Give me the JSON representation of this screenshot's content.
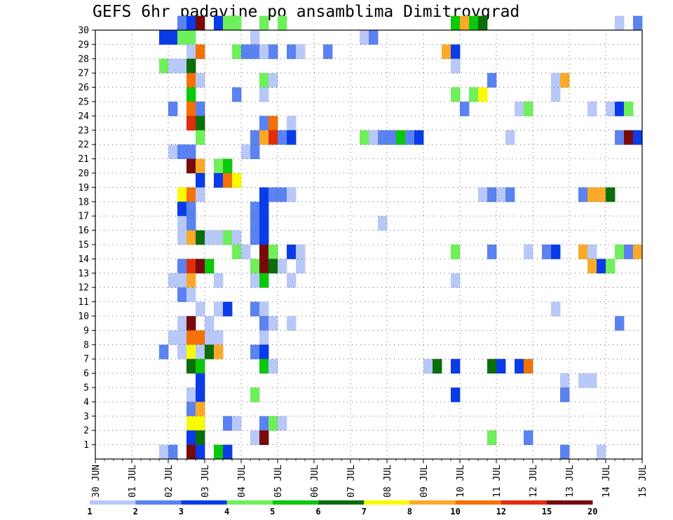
{
  "chart_data": {
    "type": "heatmap",
    "title": "GEFS 6hr padavine po ansamblima Dimitrovgrad",
    "xlabel": "",
    "ylabel": "",
    "x_ticks": [
      "30 JUN",
      "01 JUL",
      "02 JUL",
      "03 JUL",
      "04 JUL",
      "05 JUL",
      "06 JUL",
      "07 JUL",
      "08 JUL",
      "09 JUL",
      "10 JUL",
      "11 JUL",
      "12 JUL",
      "13 JUL",
      "14 JUL",
      "15 JUL"
    ],
    "y_ticks": [
      "1",
      "2",
      "3",
      "4",
      "5",
      "6",
      "7",
      "8",
      "9",
      "10",
      "11",
      "12",
      "13",
      "14",
      "15",
      "16",
      "17",
      "18",
      "19",
      "20",
      "21",
      "22",
      "23",
      "24",
      "25",
      "26",
      "27",
      "28",
      "29",
      "30"
    ],
    "y_range": [
      0,
      30
    ],
    "x_range": [
      0,
      60
    ],
    "grid": true,
    "colorbar": {
      "labels": [
        "1",
        "2",
        "3",
        "4",
        "5",
        "6",
        "7",
        "8",
        "10",
        "12",
        "15",
        "20"
      ],
      "colors": [
        "#b8c8f8",
        "#5a82f0",
        "#0a3be8",
        "#6ef05a",
        "#0ac80a",
        "#0a6e0a",
        "#fafa00",
        "#faaa28",
        "#f57005",
        "#e12d0a",
        "#780a0a"
      ]
    },
    "cells": [
      {
        "m": 30,
        "t": 9,
        "c": 1
      },
      {
        "m": 30,
        "t": 10,
        "c": 2
      },
      {
        "m": 30,
        "t": 11,
        "c": 10
      },
      {
        "m": 30,
        "t": 13,
        "c": 2
      },
      {
        "m": 30,
        "t": 14,
        "c": 3
      },
      {
        "m": 30,
        "t": 15,
        "c": 3
      },
      {
        "m": 30,
        "t": 18,
        "c": 3
      },
      {
        "m": 30,
        "t": 20,
        "c": 3
      },
      {
        "m": 30,
        "t": 39,
        "c": 4
      },
      {
        "m": 30,
        "t": 40,
        "c": 7
      },
      {
        "m": 30,
        "t": 41,
        "c": 4
      },
      {
        "m": 30,
        "t": 42,
        "c": 5
      },
      {
        "m": 30,
        "t": 57,
        "c": 0
      },
      {
        "m": 30,
        "t": 59,
        "c": 1
      },
      {
        "m": 29,
        "t": 7,
        "c": 2
      },
      {
        "m": 29,
        "t": 8,
        "c": 2
      },
      {
        "m": 29,
        "t": 9,
        "c": 3
      },
      {
        "m": 29,
        "t": 10,
        "c": 3
      },
      {
        "m": 29,
        "t": 17,
        "c": 0
      },
      {
        "m": 29,
        "t": 29,
        "c": 0
      },
      {
        "m": 29,
        "t": 30,
        "c": 1
      },
      {
        "m": 28,
        "t": 10,
        "c": 0
      },
      {
        "m": 28,
        "t": 11,
        "c": 8
      },
      {
        "m": 28,
        "t": 15,
        "c": 3
      },
      {
        "m": 28,
        "t": 16,
        "c": 1
      },
      {
        "m": 28,
        "t": 17,
        "c": 1
      },
      {
        "m": 28,
        "t": 18,
        "c": 0
      },
      {
        "m": 28,
        "t": 19,
        "c": 1
      },
      {
        "m": 28,
        "t": 21,
        "c": 1
      },
      {
        "m": 28,
        "t": 22,
        "c": 0
      },
      {
        "m": 28,
        "t": 25,
        "c": 1
      },
      {
        "m": 28,
        "t": 38,
        "c": 7
      },
      {
        "m": 28,
        "t": 39,
        "c": 2
      },
      {
        "m": 27,
        "t": 7,
        "c": 3
      },
      {
        "m": 27,
        "t": 8,
        "c": 0
      },
      {
        "m": 27,
        "t": 9,
        "c": 0
      },
      {
        "m": 27,
        "t": 10,
        "c": 5
      },
      {
        "m": 27,
        "t": 39,
        "c": 0
      },
      {
        "m": 26,
        "t": 10,
        "c": 8
      },
      {
        "m": 26,
        "t": 11,
        "c": 0
      },
      {
        "m": 26,
        "t": 18,
        "c": 3
      },
      {
        "m": 26,
        "t": 19,
        "c": 0
      },
      {
        "m": 26,
        "t": 43,
        "c": 1
      },
      {
        "m": 26,
        "t": 50,
        "c": 0
      },
      {
        "m": 26,
        "t": 51,
        "c": 7
      },
      {
        "m": 25,
        "t": 10,
        "c": 4
      },
      {
        "m": 25,
        "t": 15,
        "c": 1
      },
      {
        "m": 25,
        "t": 18,
        "c": 0
      },
      {
        "m": 25,
        "t": 39,
        "c": 3
      },
      {
        "m": 25,
        "t": 41,
        "c": 3
      },
      {
        "m": 25,
        "t": 42,
        "c": 6
      },
      {
        "m": 25,
        "t": 50,
        "c": 0
      },
      {
        "m": 24,
        "t": 8,
        "c": 1
      },
      {
        "m": 24,
        "t": 10,
        "c": 8
      },
      {
        "m": 24,
        "t": 11,
        "c": 1
      },
      {
        "m": 24,
        "t": 40,
        "c": 1
      },
      {
        "m": 24,
        "t": 46,
        "c": 0
      },
      {
        "m": 24,
        "t": 47,
        "c": 3
      },
      {
        "m": 24,
        "t": 54,
        "c": 0
      },
      {
        "m": 24,
        "t": 56,
        "c": 0
      },
      {
        "m": 24,
        "t": 57,
        "c": 2
      },
      {
        "m": 24,
        "t": 58,
        "c": 3
      },
      {
        "m": 23,
        "t": 10,
        "c": 9
      },
      {
        "m": 23,
        "t": 11,
        "c": 5
      },
      {
        "m": 23,
        "t": 18,
        "c": 1
      },
      {
        "m": 23,
        "t": 19,
        "c": 8
      },
      {
        "m": 23,
        "t": 21,
        "c": 0
      },
      {
        "m": 22,
        "t": 11,
        "c": 3
      },
      {
        "m": 22,
        "t": 17,
        "c": 1
      },
      {
        "m": 22,
        "t": 18,
        "c": 7
      },
      {
        "m": 22,
        "t": 19,
        "c": 9
      },
      {
        "m": 22,
        "t": 20,
        "c": 1
      },
      {
        "m": 22,
        "t": 21,
        "c": 2
      },
      {
        "m": 22,
        "t": 29,
        "c": 3
      },
      {
        "m": 22,
        "t": 30,
        "c": 0
      },
      {
        "m": 22,
        "t": 31,
        "c": 1
      },
      {
        "m": 22,
        "t": 32,
        "c": 1
      },
      {
        "m": 22,
        "t": 33,
        "c": 4
      },
      {
        "m": 22,
        "t": 34,
        "c": 1
      },
      {
        "m": 22,
        "t": 35,
        "c": 2
      },
      {
        "m": 22,
        "t": 45,
        "c": 0
      },
      {
        "m": 22,
        "t": 57,
        "c": 1
      },
      {
        "m": 22,
        "t": 58,
        "c": 10
      },
      {
        "m": 22,
        "t": 59,
        "c": 2
      },
      {
        "m": 21,
        "t": 8,
        "c": 0
      },
      {
        "m": 21,
        "t": 9,
        "c": 1
      },
      {
        "m": 21,
        "t": 10,
        "c": 1
      },
      {
        "m": 21,
        "t": 16,
        "c": 0
      },
      {
        "m": 21,
        "t": 17,
        "c": 1
      },
      {
        "m": 20,
        "t": 10,
        "c": 10
      },
      {
        "m": 20,
        "t": 11,
        "c": 7
      },
      {
        "m": 20,
        "t": 13,
        "c": 3
      },
      {
        "m": 20,
        "t": 14,
        "c": 4
      },
      {
        "m": 19,
        "t": 11,
        "c": 2
      },
      {
        "m": 19,
        "t": 13,
        "c": 2
      },
      {
        "m": 19,
        "t": 14,
        "c": 8
      },
      {
        "m": 19,
        "t": 15,
        "c": 6
      },
      {
        "m": 18,
        "t": 9,
        "c": 6
      },
      {
        "m": 18,
        "t": 10,
        "c": 8
      },
      {
        "m": 18,
        "t": 11,
        "c": 0
      },
      {
        "m": 18,
        "t": 18,
        "c": 2
      },
      {
        "m": 18,
        "t": 19,
        "c": 1
      },
      {
        "m": 18,
        "t": 20,
        "c": 1
      },
      {
        "m": 18,
        "t": 21,
        "c": 0
      },
      {
        "m": 18,
        "t": 42,
        "c": 0
      },
      {
        "m": 18,
        "t": 43,
        "c": 1
      },
      {
        "m": 18,
        "t": 44,
        "c": 0
      },
      {
        "m": 18,
        "t": 45,
        "c": 1
      },
      {
        "m": 18,
        "t": 53,
        "c": 1
      },
      {
        "m": 18,
        "t": 54,
        "c": 7
      },
      {
        "m": 18,
        "t": 55,
        "c": 7
      },
      {
        "m": 18,
        "t": 56,
        "c": 5
      },
      {
        "m": 17,
        "t": 9,
        "c": 2
      },
      {
        "m": 17,
        "t": 10,
        "c": 1
      },
      {
        "m": 17,
        "t": 17,
        "c": 1
      },
      {
        "m": 17,
        "t": 18,
        "c": 2
      },
      {
        "m": 16,
        "t": 9,
        "c": 0
      },
      {
        "m": 16,
        "t": 10,
        "c": 1
      },
      {
        "m": 16,
        "t": 17,
        "c": 1
      },
      {
        "m": 16,
        "t": 18,
        "c": 2
      },
      {
        "m": 16,
        "t": 31,
        "c": 0
      },
      {
        "m": 15,
        "t": 9,
        "c": 0
      },
      {
        "m": 15,
        "t": 10,
        "c": 7
      },
      {
        "m": 15,
        "t": 11,
        "c": 5
      },
      {
        "m": 15,
        "t": 12,
        "c": 0
      },
      {
        "m": 15,
        "t": 13,
        "c": 0
      },
      {
        "m": 15,
        "t": 14,
        "c": 3
      },
      {
        "m": 15,
        "t": 15,
        "c": 0
      },
      {
        "m": 15,
        "t": 17,
        "c": 1
      },
      {
        "m": 15,
        "t": 18,
        "c": 2
      },
      {
        "m": 14,
        "t": 15,
        "c": 3
      },
      {
        "m": 14,
        "t": 16,
        "c": 0
      },
      {
        "m": 14,
        "t": 18,
        "c": 10
      },
      {
        "m": 14,
        "t": 19,
        "c": 3
      },
      {
        "m": 14,
        "t": 21,
        "c": 2
      },
      {
        "m": 14,
        "t": 22,
        "c": 0
      },
      {
        "m": 14,
        "t": 39,
        "c": 3
      },
      {
        "m": 14,
        "t": 43,
        "c": 1
      },
      {
        "m": 14,
        "t": 47,
        "c": 0
      },
      {
        "m": 14,
        "t": 49,
        "c": 1
      },
      {
        "m": 14,
        "t": 50,
        "c": 2
      },
      {
        "m": 14,
        "t": 53,
        "c": 7
      },
      {
        "m": 14,
        "t": 54,
        "c": 0
      },
      {
        "m": 14,
        "t": 57,
        "c": 3
      },
      {
        "m": 14,
        "t": 58,
        "c": 1
      },
      {
        "m": 14,
        "t": 59,
        "c": 7
      },
      {
        "m": 13,
        "t": 9,
        "c": 1
      },
      {
        "m": 13,
        "t": 10,
        "c": 9
      },
      {
        "m": 13,
        "t": 11,
        "c": 10
      },
      {
        "m": 13,
        "t": 12,
        "c": 4
      },
      {
        "m": 13,
        "t": 17,
        "c": 3
      },
      {
        "m": 13,
        "t": 18,
        "c": 10
      },
      {
        "m": 13,
        "t": 19,
        "c": 5
      },
      {
        "m": 13,
        "t": 20,
        "c": 0
      },
      {
        "m": 13,
        "t": 22,
        "c": 0
      },
      {
        "m": 13,
        "t": 54,
        "c": 7
      },
      {
        "m": 13,
        "t": 55,
        "c": 2
      },
      {
        "m": 13,
        "t": 56,
        "c": 3
      },
      {
        "m": 12,
        "t": 8,
        "c": 0
      },
      {
        "m": 12,
        "t": 9,
        "c": 0
      },
      {
        "m": 12,
        "t": 10,
        "c": 7
      },
      {
        "m": 12,
        "t": 13,
        "c": 0
      },
      {
        "m": 12,
        "t": 17,
        "c": 0
      },
      {
        "m": 12,
        "t": 18,
        "c": 4
      },
      {
        "m": 12,
        "t": 21,
        "c": 0
      },
      {
        "m": 12,
        "t": 39,
        "c": 0
      },
      {
        "m": 11,
        "t": 9,
        "c": 1
      },
      {
        "m": 11,
        "t": 10,
        "c": 0
      },
      {
        "m": 10,
        "t": 11,
        "c": 0
      },
      {
        "m": 10,
        "t": 13,
        "c": 0
      },
      {
        "m": 10,
        "t": 14,
        "c": 2
      },
      {
        "m": 10,
        "t": 17,
        "c": 1
      },
      {
        "m": 10,
        "t": 18,
        "c": 0
      },
      {
        "m": 10,
        "t": 50,
        "c": 0
      },
      {
        "m": 9,
        "t": 9,
        "c": 0
      },
      {
        "m": 9,
        "t": 10,
        "c": 10
      },
      {
        "m": 9,
        "t": 12,
        "c": 0
      },
      {
        "m": 9,
        "t": 18,
        "c": 1
      },
      {
        "m": 9,
        "t": 19,
        "c": 0
      },
      {
        "m": 9,
        "t": 21,
        "c": 0
      },
      {
        "m": 9,
        "t": 57,
        "c": 1
      },
      {
        "m": 8,
        "t": 8,
        "c": 0
      },
      {
        "m": 8,
        "t": 9,
        "c": 0
      },
      {
        "m": 8,
        "t": 10,
        "c": 8
      },
      {
        "m": 8,
        "t": 11,
        "c": 8
      },
      {
        "m": 8,
        "t": 12,
        "c": 0
      },
      {
        "m": 8,
        "t": 13,
        "c": 0
      },
      {
        "m": 8,
        "t": 18,
        "c": 0
      },
      {
        "m": 7,
        "t": 7,
        "c": 1
      },
      {
        "m": 7,
        "t": 9,
        "c": 0
      },
      {
        "m": 7,
        "t": 10,
        "c": 6
      },
      {
        "m": 7,
        "t": 11,
        "c": 0
      },
      {
        "m": 7,
        "t": 12,
        "c": 5
      },
      {
        "m": 7,
        "t": 13,
        "c": 7
      },
      {
        "m": 7,
        "t": 17,
        "c": 1
      },
      {
        "m": 7,
        "t": 18,
        "c": 2
      },
      {
        "m": 6,
        "t": 10,
        "c": 5
      },
      {
        "m": 6,
        "t": 11,
        "c": 4
      },
      {
        "m": 6,
        "t": 18,
        "c": 4
      },
      {
        "m": 6,
        "t": 19,
        "c": 0
      },
      {
        "m": 6,
        "t": 36,
        "c": 0
      },
      {
        "m": 6,
        "t": 37,
        "c": 5
      },
      {
        "m": 6,
        "t": 39,
        "c": 2
      },
      {
        "m": 6,
        "t": 43,
        "c": 5
      },
      {
        "m": 6,
        "t": 44,
        "c": 2
      },
      {
        "m": 6,
        "t": 46,
        "c": 2
      },
      {
        "m": 6,
        "t": 47,
        "c": 8
      },
      {
        "m": 5,
        "t": 11,
        "c": 2
      },
      {
        "m": 5,
        "t": 51,
        "c": 0
      },
      {
        "m": 5,
        "t": 53,
        "c": 0
      },
      {
        "m": 5,
        "t": 54,
        "c": 0
      },
      {
        "m": 4,
        "t": 10,
        "c": 0
      },
      {
        "m": 4,
        "t": 11,
        "c": 2
      },
      {
        "m": 4,
        "t": 17,
        "c": 3
      },
      {
        "m": 4,
        "t": 39,
        "c": 2
      },
      {
        "m": 4,
        "t": 51,
        "c": 1
      },
      {
        "m": 3,
        "t": 10,
        "c": 1
      },
      {
        "m": 3,
        "t": 11,
        "c": 7
      },
      {
        "m": 2,
        "t": 10,
        "c": 6
      },
      {
        "m": 2,
        "t": 11,
        "c": 6
      },
      {
        "m": 2,
        "t": 14,
        "c": 1
      },
      {
        "m": 2,
        "t": 15,
        "c": 0
      },
      {
        "m": 2,
        "t": 18,
        "c": 1
      },
      {
        "m": 2,
        "t": 19,
        "c": 3
      },
      {
        "m": 2,
        "t": 20,
        "c": 0
      },
      {
        "m": 1,
        "t": 10,
        "c": 2
      },
      {
        "m": 1,
        "t": 11,
        "c": 5
      },
      {
        "m": 1,
        "t": 17,
        "c": 0
      },
      {
        "m": 1,
        "t": 18,
        "c": 10
      },
      {
        "m": 1,
        "t": 43,
        "c": 3
      },
      {
        "m": 1,
        "t": 47,
        "c": 1
      },
      {
        "m": 0,
        "t": 7,
        "c": 0
      },
      {
        "m": 0,
        "t": 8,
        "c": 1
      },
      {
        "m": 0,
        "t": 10,
        "c": 10
      },
      {
        "m": 0,
        "t": 11,
        "c": 2
      },
      {
        "m": 0,
        "t": 13,
        "c": 4
      },
      {
        "m": 0,
        "t": 14,
        "c": 2
      },
      {
        "m": 0,
        "t": 51,
        "c": 1
      },
      {
        "m": 0,
        "t": 55,
        "c": 0
      }
    ]
  }
}
